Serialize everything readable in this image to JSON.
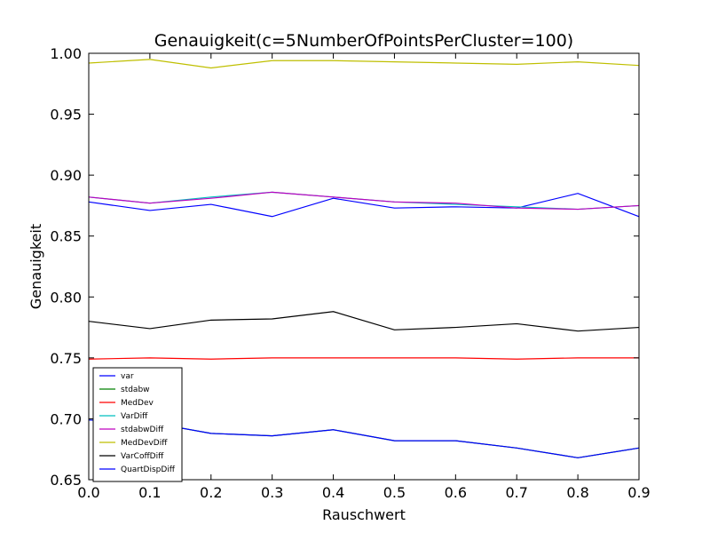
{
  "chart_data": {
    "type": "line",
    "title": "Genauigkeit(c=5NumberOfPointsPerCluster=100)",
    "xlabel": "Rauschwert",
    "ylabel": "Genauigkeit",
    "x": [
      0.0,
      0.1,
      0.2,
      0.3,
      0.4,
      0.5,
      0.6,
      0.7,
      0.8,
      0.9
    ],
    "xlim": [
      0.0,
      0.9
    ],
    "ylim": [
      0.65,
      1.0
    ],
    "xticks": [
      "0.0",
      "0.1",
      "0.2",
      "0.3",
      "0.4",
      "0.5",
      "0.6",
      "0.7",
      "0.8",
      "0.9"
    ],
    "yticks": [
      "0.65",
      "0.70",
      "0.75",
      "0.80",
      "0.85",
      "0.90",
      "0.95",
      "1.00"
    ],
    "grid": false,
    "legend_position": "lower-left",
    "series": [
      {
        "name": "var",
        "color": "#0000ff",
        "values": [
          0.878,
          0.871,
          0.876,
          0.866,
          0.881,
          0.873,
          0.874,
          0.873,
          0.885,
          0.866
        ]
      },
      {
        "name": "stdabw",
        "color": "#008000",
        "values": [
          0.699,
          0.697,
          0.688,
          0.686,
          0.691,
          0.682,
          0.682,
          0.676,
          0.668,
          0.676
        ]
      },
      {
        "name": "MedDev",
        "color": "#ff0000",
        "values": [
          0.749,
          0.75,
          0.749,
          0.75,
          0.75,
          0.75,
          0.75,
          0.749,
          0.75,
          0.75
        ]
      },
      {
        "name": "VarDiff",
        "color": "#00bfbf",
        "values": [
          0.882,
          0.877,
          0.882,
          0.886,
          0.882,
          0.878,
          0.876,
          0.874,
          0.872,
          0.875
        ]
      },
      {
        "name": "stdabwDiff",
        "color": "#bf00bf",
        "values": [
          0.882,
          0.877,
          0.881,
          0.886,
          0.882,
          0.878,
          0.877,
          0.873,
          0.872,
          0.875
        ]
      },
      {
        "name": "MedDevDiff",
        "color": "#bfbf00",
        "values": [
          0.992,
          0.995,
          0.988,
          0.994,
          0.994,
          0.993,
          0.992,
          0.991,
          0.993,
          0.99
        ]
      },
      {
        "name": "VarCoffDiff",
        "color": "#000000",
        "values": [
          0.78,
          0.774,
          0.781,
          0.782,
          0.788,
          0.773,
          0.775,
          0.778,
          0.772,
          0.775
        ]
      },
      {
        "name": "QuartDispDiff",
        "color": "#0000ff",
        "values": [
          0.699,
          0.697,
          0.688,
          0.686,
          0.691,
          0.682,
          0.682,
          0.676,
          0.668,
          0.676
        ]
      }
    ]
  }
}
